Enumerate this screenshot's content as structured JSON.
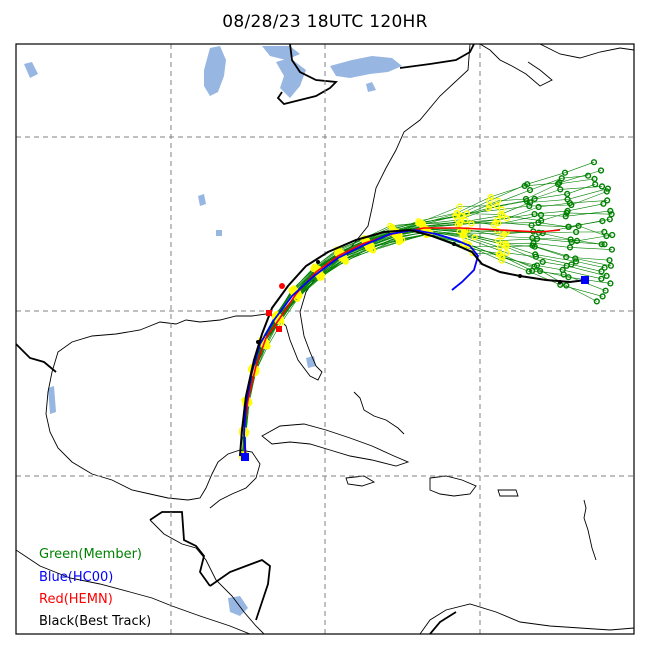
{
  "title": "08/28/23 18UTC 120HR",
  "legend": {
    "items": [
      {
        "label": "Green(Member)",
        "color": "#008000"
      },
      {
        "label": "Blue(HC00)",
        "color": "#0000ff"
      },
      {
        "label": "Red(HEMN)",
        "color": "#ff0000"
      },
      {
        "label": "Black(Best Track)",
        "color": "#000000"
      }
    ]
  },
  "colors": {
    "water": "#97b6e1",
    "coast": "#000000",
    "grid": "#808080",
    "member_line": "#008000",
    "member_marker_early": "#ffff00",
    "member_marker_late": "#008000",
    "hc00": "#0000ff",
    "hemn": "#ff0000",
    "best_track": "#000000"
  }
}
